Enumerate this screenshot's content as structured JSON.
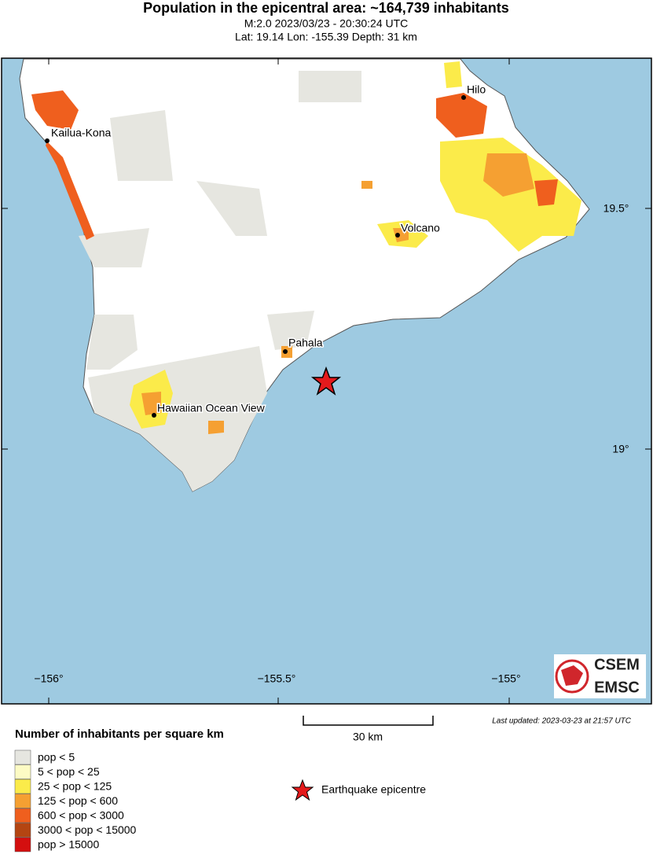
{
  "header": {
    "title": "Population in the epicentral area: ~164,739 inhabitants",
    "line1": "M:2.0 2023/03/23 - 20:30:24 UTC",
    "line2": "Lat: 19.14 Lon: -155.39 Depth: 31 km"
  },
  "map": {
    "places": [
      "Kailua-Kona",
      "Hilo",
      "Volcano",
      "Pahala",
      "Hawaiian Ocean View"
    ],
    "lon_labels": [
      "−156°",
      "−155.5°",
      "−155°"
    ],
    "lat_labels": [
      "19.5°",
      "19°"
    ],
    "logo": [
      "CSEM",
      "EMSC"
    ]
  },
  "scale_bar": "30 km",
  "last_updated": "Last updated: 2023-03-23 at 21:57 UTC",
  "legend": {
    "title": "Number of inhabitants per square km",
    "items": [
      {
        "label": "pop < 5",
        "color": "#e6e6e0"
      },
      {
        "label": "5 < pop < 25",
        "color": "#fdfbc4"
      },
      {
        "label": "25 < pop < 125",
        "color": "#fbeb4a"
      },
      {
        "label": "125 < pop < 600",
        "color": "#f5a032"
      },
      {
        "label": "600 < pop < 3000",
        "color": "#ef5f1e"
      },
      {
        "label": "3000 < pop < 15000",
        "color": "#b44512"
      },
      {
        "label": "pop > 15000",
        "color": "#d40f0f"
      }
    ],
    "epicentre": "Earthquake epicentre"
  }
}
